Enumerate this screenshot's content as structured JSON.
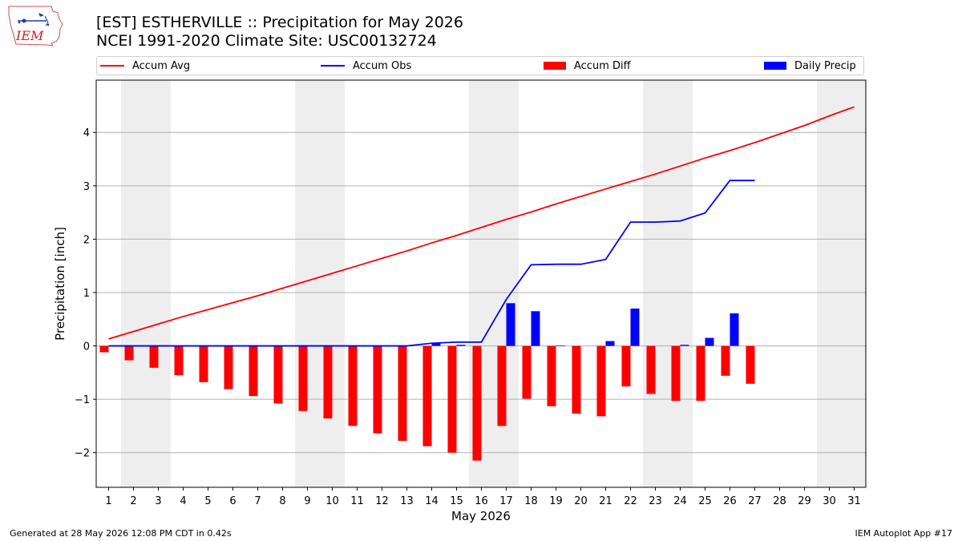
{
  "header": {
    "title_line1": "[EST] ESTHERVILLE :: Precipitation for May 2026",
    "title_line2": "NCEI 1991-2020 Climate Site: USC00132724"
  },
  "logo": {
    "text": "IEM"
  },
  "legend": {
    "accum_avg": "Accum Avg",
    "accum_obs": "Accum Obs",
    "accum_diff": "Accum Diff",
    "daily_precip": "Daily Precip"
  },
  "footer": {
    "left": "Generated at 28 May 2026 12:08 PM CDT in 0.42s",
    "right": "IEM Autoplot App #17"
  },
  "colors": {
    "accum_avg": "#ff0000",
    "accum_obs": "#0000ff",
    "accum_diff": "#ff0000",
    "daily_precip": "#0000ff",
    "weekend_shade": "#eeeeee",
    "grid": "#b0b0b0"
  },
  "chart_data": {
    "type": "bar",
    "xlabel": "May 2026",
    "ylabel": "Precipitation [inch]",
    "ylim": [
      -2.65,
      4.98
    ],
    "yticks": [
      -2,
      -1,
      0,
      1,
      2,
      3,
      4
    ],
    "ytick_labels": [
      "−2",
      "−1",
      "0",
      "1",
      "2",
      "3",
      "4"
    ],
    "days": [
      1,
      2,
      3,
      4,
      5,
      6,
      7,
      8,
      9,
      10,
      11,
      12,
      13,
      14,
      15,
      16,
      17,
      18,
      19,
      20,
      21,
      22,
      23,
      24,
      25,
      26,
      27,
      28,
      29,
      30,
      31
    ],
    "weekend_days": [
      2,
      3,
      9,
      10,
      16,
      17,
      23,
      24,
      30,
      31
    ],
    "grid": "horizontal",
    "series": [
      {
        "name": "Accum Avg",
        "kind": "line",
        "values": [
          0.13,
          0.27,
          0.41,
          0.55,
          0.68,
          0.81,
          0.94,
          1.08,
          1.22,
          1.36,
          1.5,
          1.64,
          1.78,
          1.93,
          2.07,
          2.22,
          2.37,
          2.51,
          2.66,
          2.8,
          2.94,
          3.08,
          3.22,
          3.37,
          3.52,
          3.66,
          3.81,
          3.97,
          4.13,
          4.31,
          4.48
        ]
      },
      {
        "name": "Accum Obs",
        "kind": "line",
        "values": [
          0,
          0,
          0,
          0,
          0,
          0,
          0,
          0,
          0,
          0,
          0,
          0,
          0,
          0.05,
          0.07,
          0.07,
          0.87,
          1.52,
          1.53,
          1.53,
          1.62,
          2.32,
          2.32,
          2.34,
          2.49,
          3.1,
          3.1
        ]
      },
      {
        "name": "Accum Diff",
        "kind": "bar",
        "values": [
          -0.12,
          -0.27,
          -0.41,
          -0.55,
          -0.68,
          -0.81,
          -0.94,
          -1.08,
          -1.22,
          -1.36,
          -1.5,
          -1.64,
          -1.78,
          -1.88,
          -2.0,
          -2.15,
          -1.5,
          -0.99,
          -1.13,
          -1.27,
          -1.32,
          -0.76,
          -0.9,
          -1.03,
          -1.03,
          -0.56,
          -0.71
        ]
      },
      {
        "name": "Daily Precip",
        "kind": "bar",
        "values": [
          0,
          0,
          0,
          0,
          0,
          0,
          0,
          0,
          0,
          0,
          0,
          0,
          0,
          0.05,
          0.02,
          0,
          0.8,
          0.65,
          0.01,
          0,
          0.09,
          0.7,
          0,
          0.02,
          0.15,
          0.61,
          0
        ]
      }
    ]
  }
}
